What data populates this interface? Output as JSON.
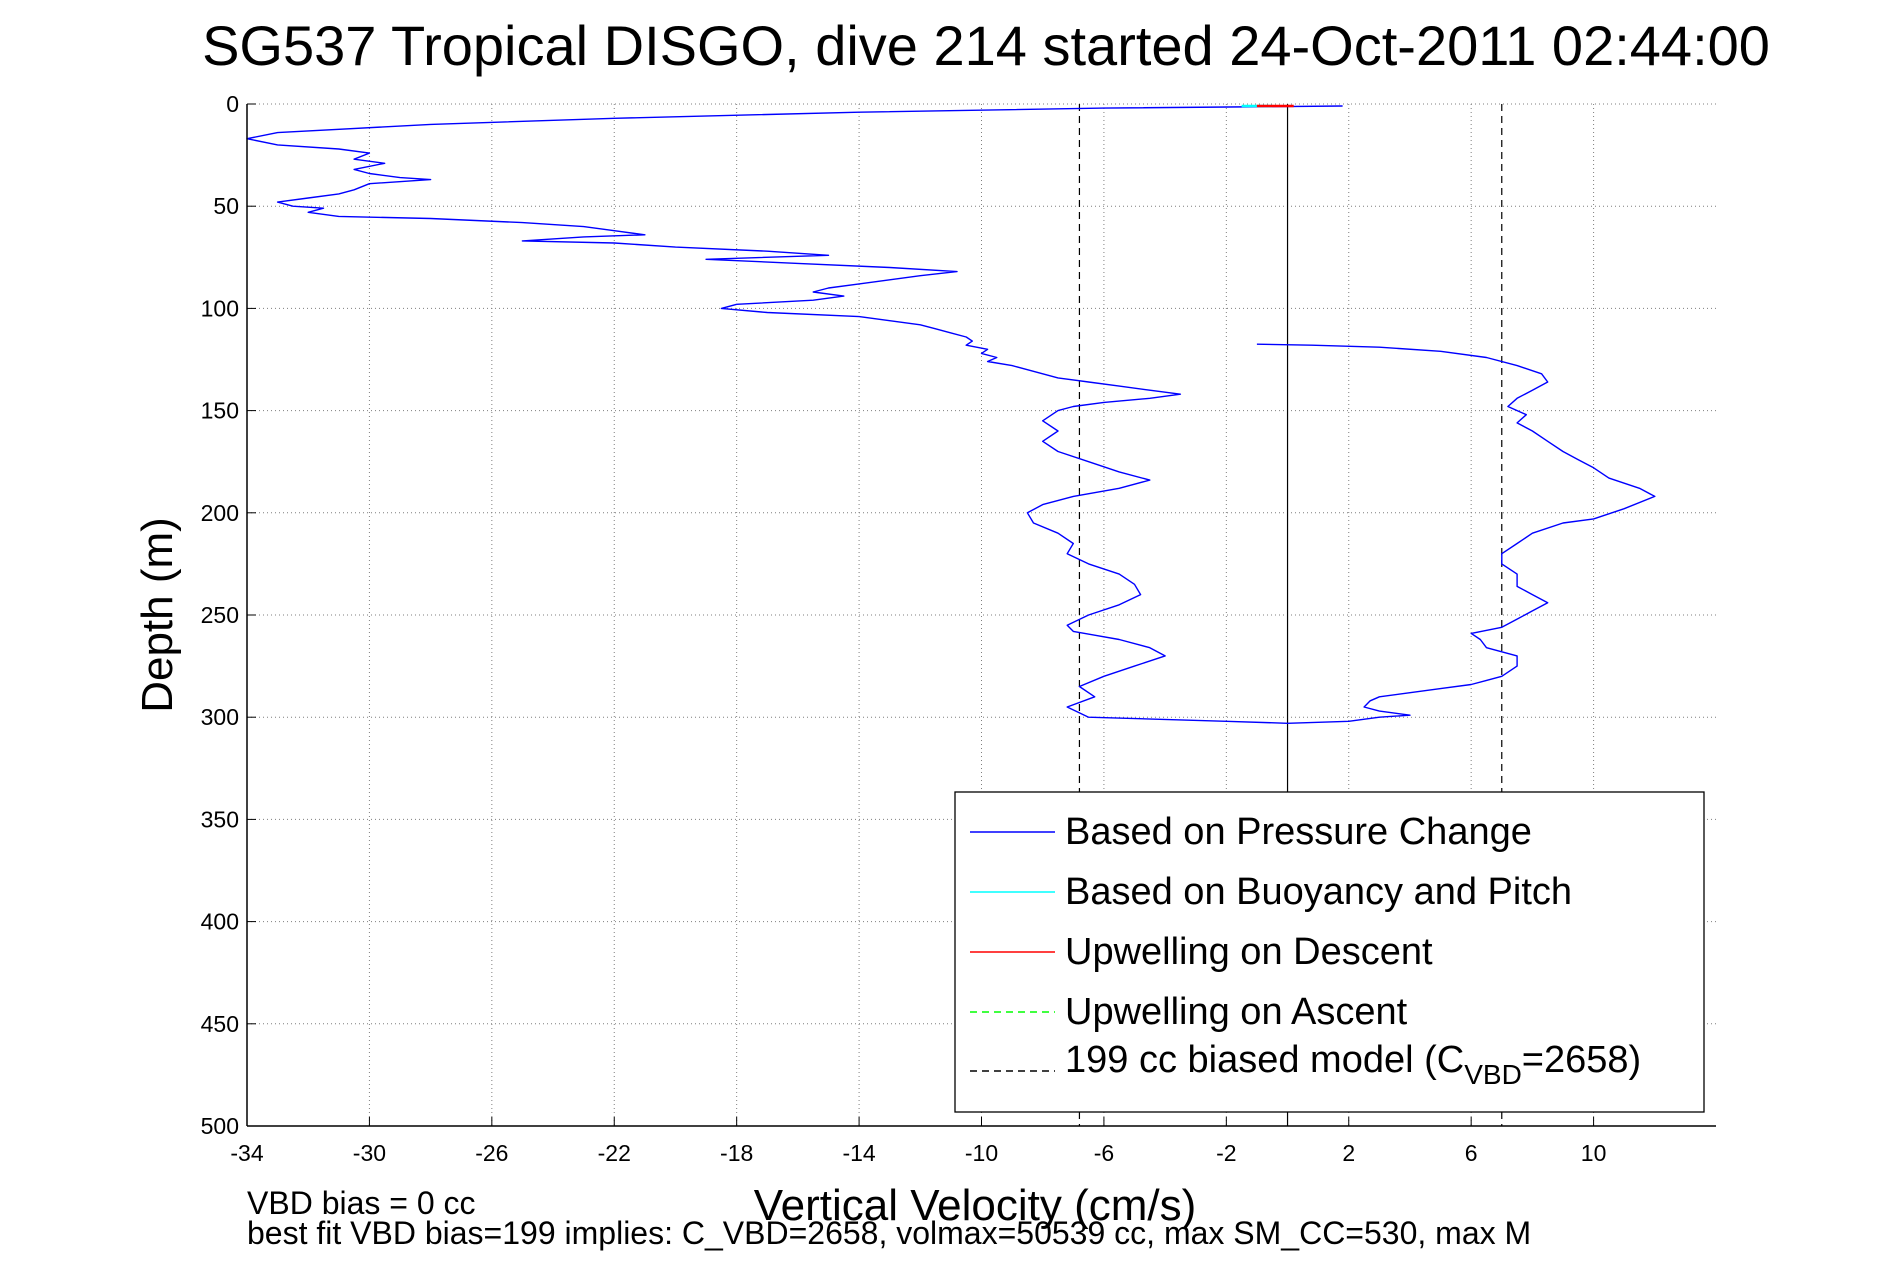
{
  "chart_data": {
    "type": "line",
    "title": "SG537 Tropical DISGO, dive 214 started 24-Oct-2011 02:44:00",
    "xlabel": "Vertical Velocity (cm/s)",
    "ylabel": "Depth (m)",
    "xlim": [
      -34,
      14
    ],
    "ylim": [
      0,
      500
    ],
    "y_reversed": true,
    "grid": true,
    "x_ticks": [
      -34,
      -30,
      -26,
      -22,
      -18,
      -14,
      -10,
      -6,
      -2,
      2,
      6,
      10
    ],
    "y_ticks": [
      0,
      50,
      100,
      150,
      200,
      250,
      300,
      350,
      400,
      450,
      500
    ],
    "legend_position": "bottom-right",
    "series": [
      {
        "name": "Based on Pressure Change",
        "color": "#0000ff",
        "style": "solid",
        "points": [
          [
            1.8,
            1
          ],
          [
            -6,
            2
          ],
          [
            -14,
            4
          ],
          [
            -22,
            7
          ],
          [
            -28,
            10
          ],
          [
            -33,
            14
          ],
          [
            -34,
            17
          ],
          [
            -33,
            20
          ],
          [
            -31,
            22
          ],
          [
            -30,
            24
          ],
          [
            -30.5,
            27
          ],
          [
            -29.5,
            29
          ],
          [
            -30.5,
            32
          ],
          [
            -30,
            34
          ],
          [
            -29,
            36
          ],
          [
            -28,
            37
          ],
          [
            -30,
            39
          ],
          [
            -30.5,
            42
          ],
          [
            -31,
            44
          ],
          [
            -32,
            46
          ],
          [
            -33,
            48
          ],
          [
            -32.5,
            50
          ],
          [
            -31.5,
            51
          ],
          [
            -32,
            53
          ],
          [
            -31,
            55
          ],
          [
            -28,
            56
          ],
          [
            -25,
            58
          ],
          [
            -23,
            60
          ],
          [
            -22,
            62
          ],
          [
            -21,
            64
          ],
          [
            -23,
            65
          ],
          [
            -25,
            67
          ],
          [
            -22,
            68
          ],
          [
            -20,
            70
          ],
          [
            -17,
            72
          ],
          [
            -15,
            74
          ],
          [
            -19,
            76
          ],
          [
            -16,
            78
          ],
          [
            -13,
            80
          ],
          [
            -10.8,
            82
          ],
          [
            -12,
            84
          ],
          [
            -13,
            86
          ],
          [
            -14,
            88
          ],
          [
            -15,
            90
          ],
          [
            -15.5,
            92
          ],
          [
            -14.5,
            94
          ],
          [
            -15.5,
            96
          ],
          [
            -18,
            98
          ],
          [
            -18.5,
            100
          ],
          [
            -17,
            102
          ],
          [
            -14,
            104
          ],
          [
            -13,
            106
          ],
          [
            -12,
            108
          ],
          [
            -11.5,
            110
          ],
          [
            -11,
            112
          ],
          [
            -10.5,
            114
          ],
          [
            -10.3,
            116
          ],
          [
            -10.5,
            118
          ],
          [
            -9.8,
            120
          ],
          [
            -10,
            122
          ],
          [
            -9.5,
            124
          ],
          [
            -9.8,
            126
          ],
          [
            -9,
            128
          ],
          [
            -8.5,
            130
          ],
          [
            -8,
            132
          ],
          [
            -7.5,
            134
          ],
          [
            -6.5,
            136
          ],
          [
            -5.5,
            138
          ],
          [
            -4.5,
            140
          ],
          [
            -3.5,
            142
          ],
          [
            -4.5,
            144
          ],
          [
            -6,
            146
          ],
          [
            -7,
            148
          ],
          [
            -7.5,
            150
          ],
          [
            -8,
            155
          ],
          [
            -7.5,
            160
          ],
          [
            -8,
            165
          ],
          [
            -7.5,
            170
          ],
          [
            -6.5,
            175
          ],
          [
            -5.5,
            180
          ],
          [
            -4.5,
            184
          ],
          [
            -5.5,
            188
          ],
          [
            -7,
            192
          ],
          [
            -8,
            196
          ],
          [
            -8.5,
            200
          ],
          [
            -8.3,
            205
          ],
          [
            -7.5,
            210
          ],
          [
            -7,
            215
          ],
          [
            -7.2,
            220
          ],
          [
            -6.5,
            225
          ],
          [
            -5.5,
            230
          ],
          [
            -5,
            235
          ],
          [
            -4.8,
            240
          ],
          [
            -5.5,
            245
          ],
          [
            -6.5,
            250
          ],
          [
            -7.2,
            255
          ],
          [
            -7,
            258
          ],
          [
            -5.5,
            262
          ],
          [
            -4.5,
            266
          ],
          [
            -4,
            270
          ],
          [
            -5,
            275
          ],
          [
            -6,
            280
          ],
          [
            -6.8,
            285
          ],
          [
            -6.3,
            290
          ],
          [
            -7.2,
            295
          ],
          [
            -6.5,
            300
          ],
          [
            -2,
            302
          ],
          [
            0,
            303
          ],
          [
            2,
            302
          ],
          [
            3,
            300
          ],
          [
            4,
            299
          ],
          [
            3,
            297
          ],
          [
            2.5,
            295
          ],
          [
            2.7,
            292
          ],
          [
            3,
            290
          ],
          [
            4,
            288
          ],
          [
            5,
            286
          ],
          [
            6,
            284
          ],
          [
            6.5,
            282
          ],
          [
            7,
            280
          ],
          [
            7.5,
            275
          ],
          [
            7.5,
            270
          ],
          [
            6.5,
            266
          ],
          [
            6.3,
            262
          ],
          [
            6,
            259
          ],
          [
            7,
            256
          ],
          [
            7.5,
            252
          ],
          [
            8,
            248
          ],
          [
            8.5,
            244
          ],
          [
            8,
            240
          ],
          [
            7.5,
            236
          ],
          [
            7.5,
            230
          ],
          [
            7,
            225
          ],
          [
            7,
            220
          ],
          [
            7.5,
            215
          ],
          [
            8,
            210
          ],
          [
            9,
            205
          ],
          [
            10,
            203
          ],
          [
            11,
            198
          ],
          [
            12,
            192
          ],
          [
            11.5,
            188
          ],
          [
            10.5,
            183
          ],
          [
            10,
            178
          ],
          [
            9.5,
            174
          ],
          [
            9,
            170
          ],
          [
            8.5,
            165
          ],
          [
            8,
            160
          ],
          [
            7.5,
            156
          ],
          [
            7.8,
            152
          ],
          [
            7.2,
            148
          ],
          [
            7.5,
            144
          ],
          [
            8,
            140
          ],
          [
            8.5,
            136
          ],
          [
            8.3,
            132
          ],
          [
            7.5,
            128
          ],
          [
            6.5,
            124
          ],
          [
            5,
            121
          ],
          [
            3,
            119
          ],
          [
            0.8,
            118
          ],
          [
            -1,
            117.5
          ]
        ]
      },
      {
        "name": "Based on Buoyancy and Pitch",
        "color": "#00ffff",
        "style": "solid",
        "points": [
          [
            -1.5,
            1
          ],
          [
            -0.5,
            1
          ]
        ]
      },
      {
        "name": "Upwelling on Descent",
        "color": "#ff0000",
        "style": "solid",
        "points": [
          [
            -1,
            1
          ],
          [
            0.2,
            1
          ]
        ]
      },
      {
        "name": "Upwelling on Ascent",
        "color": "#00ff00",
        "style": "dashed",
        "points": []
      },
      {
        "name": "199 cc biased model (C_VBD=2658)",
        "color": "#000000",
        "style": "dashed",
        "points": [
          [
            -6.8,
            0
          ],
          [
            -6.8,
            500
          ],
          [
            7,
            0
          ],
          [
            7,
            500
          ]
        ]
      },
      {
        "name": "",
        "color": "#000000",
        "style": "solid",
        "points": [
          [
            0,
            0
          ],
          [
            0,
            500
          ]
        ]
      }
    ],
    "legend": {
      "entries": [
        {
          "label": "Based on Pressure Change",
          "color": "#0000ff",
          "style": "solid"
        },
        {
          "label": "Based on Buoyancy and Pitch",
          "color": "#00ffff",
          "style": "solid"
        },
        {
          "label": "Upwelling on Descent",
          "color": "#ff0000",
          "style": "solid"
        },
        {
          "label": "Upwelling on Ascent",
          "color": "#00ff00",
          "style": "dashed"
        }
      ],
      "model_entry": {
        "prefix": "199 cc biased model (C",
        "subscript": "VBD",
        "suffix": "=2658)",
        "color": "#000000",
        "style": "dashed"
      }
    },
    "annotations": [
      "VBD bias = 0 cc",
      "best fit VBD bias=199 implies: C_VBD=2658, volmax=50539 cc, max SM_CC=530, max M"
    ]
  }
}
